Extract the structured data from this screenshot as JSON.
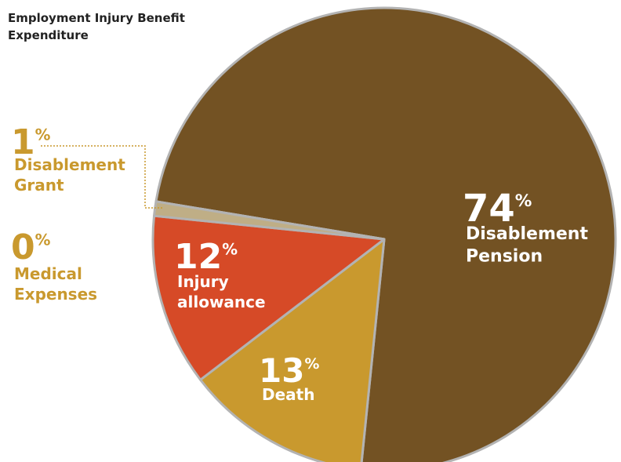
{
  "chart_data": {
    "type": "pie",
    "title": "Employment Injury Benefit Expenditure",
    "categories": [
      "Disablement Pension",
      "Death",
      "Injury allowance",
      "Disablement Grant",
      "Medical Expenses"
    ],
    "values": [
      74,
      13,
      12,
      1,
      0
    ],
    "value_labels": [
      "74%",
      "13%",
      "12%",
      "1%",
      "0%"
    ],
    "colors": [
      "#735223",
      "#c9992e",
      "#d64a27",
      "#bfae86",
      "#c9992e"
    ]
  }
}
